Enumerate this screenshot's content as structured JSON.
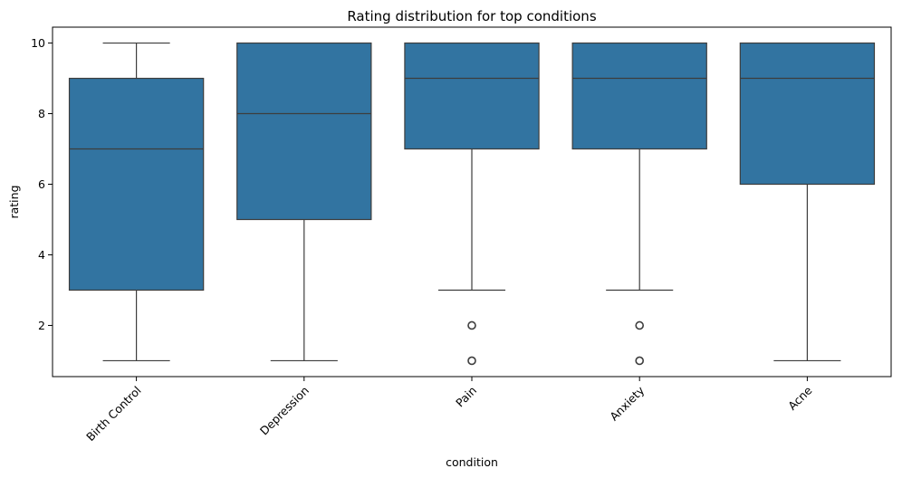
{
  "chart_data": {
    "type": "box",
    "title": "Rating distribution for top conditions",
    "xlabel": "condition",
    "ylabel": "rating",
    "ylim": [
      0.55,
      10.45
    ],
    "yticks": [
      2,
      4,
      6,
      8,
      10
    ],
    "grid": false,
    "legend": "none",
    "box_color": "#3274a1",
    "line_color": "#3d3d3d",
    "categories": [
      "Birth Control",
      "Depression",
      "Pain",
      "Anxiety",
      "Acne"
    ],
    "boxes": [
      {
        "category": "Birth Control",
        "whisker_low": 1,
        "q1": 3,
        "median": 7,
        "q3": 9,
        "whisker_high": 10,
        "outliers": []
      },
      {
        "category": "Depression",
        "whisker_low": 1,
        "q1": 5,
        "median": 8,
        "q3": 10,
        "whisker_high": 10,
        "outliers": []
      },
      {
        "category": "Pain",
        "whisker_low": 3,
        "q1": 7,
        "median": 9,
        "q3": 10,
        "whisker_high": 10,
        "outliers": [
          2,
          1
        ]
      },
      {
        "category": "Anxiety",
        "whisker_low": 3,
        "q1": 7,
        "median": 9,
        "q3": 10,
        "whisker_high": 10,
        "outliers": [
          2,
          1
        ]
      },
      {
        "category": "Acne",
        "whisker_low": 1,
        "q1": 6,
        "median": 9,
        "q3": 10,
        "whisker_high": 10,
        "outliers": []
      }
    ]
  }
}
